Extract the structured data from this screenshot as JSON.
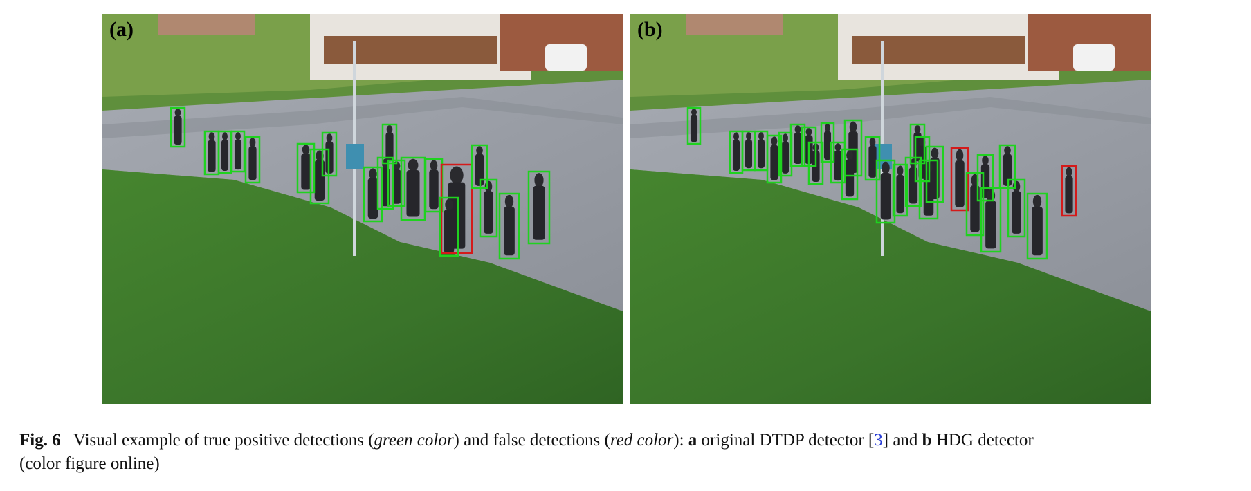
{
  "figure": {
    "panels": [
      {
        "id": "a",
        "label": "(a)",
        "sign_icon": "info-sign-icon",
        "detections": [
          {
            "id": "a-p1",
            "status": "true-positive",
            "box": [
              99,
              136,
              20,
              56
            ]
          },
          {
            "id": "a-p2",
            "status": "true-positive",
            "box": [
              148,
              170,
              20,
              62
            ]
          },
          {
            "id": "a-p3",
            "status": "true-positive",
            "box": [
              168,
              170,
              18,
              60
            ]
          },
          {
            "id": "a-p4",
            "status": "true-positive",
            "box": [
              187,
              170,
              18,
              58
            ]
          },
          {
            "id": "a-p5",
            "status": "true-positive",
            "box": [
              207,
              178,
              20,
              66
            ]
          },
          {
            "id": "a-p6",
            "status": "true-positive",
            "box": [
              282,
              188,
              24,
              70
            ]
          },
          {
            "id": "a-p7",
            "status": "true-positive",
            "box": [
              301,
              196,
              26,
              78
            ]
          },
          {
            "id": "a-p8",
            "status": "true-positive",
            "box": [
              318,
              172,
              20,
              62
            ]
          },
          {
            "id": "a-p9",
            "status": "true-positive",
            "box": [
              405,
              160,
              20,
              56
            ]
          },
          {
            "id": "a-p10",
            "status": "true-positive",
            "box": [
              398,
              208,
              22,
              74
            ]
          },
          {
            "id": "a-p11",
            "status": "true-positive",
            "box": [
              413,
              212,
              24,
              66
            ]
          },
          {
            "id": "a-p12",
            "status": "true-positive",
            "box": [
              432,
              208,
              34,
              90
            ]
          },
          {
            "id": "a-p13",
            "status": "true-positive",
            "box": [
              378,
              222,
              26,
              78
            ]
          },
          {
            "id": "a-p14",
            "status": "true-positive",
            "box": [
              467,
              210,
              24,
              76
            ]
          },
          {
            "id": "a-p15",
            "status": "false-positive",
            "box": [
              490,
              218,
              44,
              128
            ]
          },
          {
            "id": "a-p16",
            "status": "true-positive",
            "box": [
              488,
              266,
              26,
              84
            ]
          },
          {
            "id": "a-p17",
            "status": "true-positive",
            "box": [
              534,
              190,
              22,
              62
            ]
          },
          {
            "id": "a-p18",
            "status": "true-positive",
            "box": [
              546,
              240,
              24,
              82
            ]
          },
          {
            "id": "a-p19",
            "status": "true-positive",
            "box": [
              574,
              260,
              28,
              94
            ]
          },
          {
            "id": "a-p20",
            "status": "true-positive",
            "box": [
              616,
              228,
              30,
              104
            ]
          }
        ]
      },
      {
        "id": "b",
        "label": "(b)",
        "sign_icon": "info-sign-icon",
        "detections": [
          {
            "id": "b-p1",
            "status": "true-positive",
            "box": [
              83,
              136,
              18,
              52
            ]
          },
          {
            "id": "b-p2",
            "status": "true-positive",
            "box": [
              144,
              170,
              18,
              60
            ]
          },
          {
            "id": "b-p3",
            "status": "true-positive",
            "box": [
              162,
              170,
              18,
              56
            ]
          },
          {
            "id": "b-p4",
            "status": "true-positive",
            "box": [
              180,
              170,
              18,
              56
            ]
          },
          {
            "id": "b-p5",
            "status": "true-positive",
            "box": [
              198,
              176,
              20,
              68
            ]
          },
          {
            "id": "b-p6",
            "status": "true-positive",
            "box": [
              215,
              172,
              18,
              62
            ]
          },
          {
            "id": "b-p7",
            "status": "true-positive",
            "box": [
              232,
              160,
              20,
              60
            ]
          },
          {
            "id": "b-p8",
            "status": "true-positive",
            "box": [
              248,
              164,
              20,
              56
            ]
          },
          {
            "id": "b-p9",
            "status": "true-positive",
            "box": [
              258,
              186,
              20,
              60
            ]
          },
          {
            "id": "b-p10",
            "status": "true-positive",
            "box": [
              276,
              158,
              18,
              56
            ]
          },
          {
            "id": "b-p11",
            "status": "true-positive",
            "box": [
              290,
              186,
              20,
              58
            ]
          },
          {
            "id": "b-p12",
            "status": "true-positive",
            "box": [
              310,
              154,
              24,
              80
            ]
          },
          {
            "id": "b-p13",
            "status": "true-positive",
            "box": [
              306,
              196,
              22,
              72
            ]
          },
          {
            "id": "b-p14",
            "status": "true-positive",
            "box": [
              340,
              178,
              20,
              62
            ]
          },
          {
            "id": "b-p15",
            "status": "true-positive",
            "box": [
              356,
              212,
              26,
              90
            ]
          },
          {
            "id": "b-p16",
            "status": "true-positive",
            "box": [
              380,
              218,
              20,
              74
            ]
          },
          {
            "id": "b-p17",
            "status": "true-positive",
            "box": [
              398,
              208,
              22,
              70
            ]
          },
          {
            "id": "b-p18",
            "status": "true-positive",
            "box": [
              405,
              160,
              20,
              56
            ]
          },
          {
            "id": "b-p19",
            "status": "true-positive",
            "box": [
              412,
              178,
              20,
              64
            ]
          },
          {
            "id": "b-p20",
            "status": "true-positive",
            "box": [
              428,
              192,
              24,
              80
            ]
          },
          {
            "id": "b-p21",
            "status": "true-positive",
            "box": [
              418,
              212,
              26,
              84
            ]
          },
          {
            "id": "b-p22",
            "status": "false-positive",
            "box": [
              464,
              194,
              24,
              90
            ]
          },
          {
            "id": "b-p23",
            "status": "true-positive",
            "box": [
              486,
              230,
              24,
              90
            ]
          },
          {
            "id": "b-p24",
            "status": "true-positive",
            "box": [
              502,
              204,
              22,
              66
            ]
          },
          {
            "id": "b-p25",
            "status": "true-positive",
            "box": [
              507,
              252,
              28,
              92
            ]
          },
          {
            "id": "b-p26",
            "status": "true-positive",
            "box": [
              534,
              190,
              22,
              62
            ]
          },
          {
            "id": "b-p27",
            "status": "true-positive",
            "box": [
              546,
              240,
              24,
              82
            ]
          },
          {
            "id": "b-p28",
            "status": "true-positive",
            "box": [
              574,
              260,
              28,
              94
            ]
          },
          {
            "id": "b-p29",
            "status": "false-positive",
            "box": [
              624,
              220,
              20,
              72
            ]
          }
        ]
      }
    ],
    "colors": {
      "true_positive": "#1fd21f",
      "false_positive": "#d41a1a",
      "grass": "#3d7a2c",
      "pavement": "#9a9ea6",
      "citation": "#2a3fd6"
    },
    "caption": {
      "fig": "Fig. 6",
      "t1": "Visual example of true positive detections (",
      "green": "green color",
      "t2": ") and false detections (",
      "red": "red color",
      "t3": "): ",
      "a": "a",
      "t4": " original DTDP detector [",
      "ref": "3",
      "t5": "] and ",
      "b": "b",
      "t6": " HDG detector",
      "t7": "(color figure online)"
    }
  }
}
